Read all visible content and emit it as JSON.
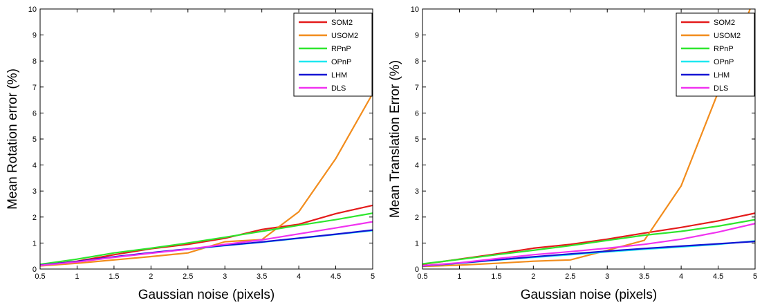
{
  "chart_data": [
    {
      "type": "line",
      "title": "",
      "xlabel": "Gaussian noise (pixels)",
      "ylabel": "Mean Rotation error (%)",
      "xlim": [
        0.5,
        5
      ],
      "ylim": [
        0,
        10
      ],
      "xticks": [
        0.5,
        1,
        1.5,
        2,
        2.5,
        3,
        3.5,
        4,
        4.5,
        5
      ],
      "yticks": [
        0,
        1,
        2,
        3,
        4,
        5,
        6,
        7,
        8,
        9,
        10
      ],
      "grid": false,
      "legend_position": "top-right",
      "x": [
        0.5,
        1,
        1.5,
        2,
        2.5,
        3,
        3.5,
        4,
        4.5,
        5
      ],
      "series": [
        {
          "name": "SOM2",
          "color": "#e41a1a",
          "values": [
            0.15,
            0.3,
            0.55,
            0.78,
            0.95,
            1.18,
            1.52,
            1.72,
            2.13,
            2.45
          ]
        },
        {
          "name": "USOM2",
          "color": "#f28c1c",
          "values": [
            0.12,
            0.22,
            0.35,
            0.48,
            0.62,
            1.05,
            1.13,
            2.2,
            4.25,
            6.75
          ]
        },
        {
          "name": "RPnP",
          "color": "#2ee62e",
          "values": [
            0.18,
            0.38,
            0.62,
            0.8,
            1.0,
            1.22,
            1.45,
            1.68,
            1.9,
            2.15
          ]
        },
        {
          "name": "OPnP",
          "color": "#1ee8f0",
          "values": [
            0.14,
            0.28,
            0.46,
            0.62,
            0.76,
            0.9,
            1.03,
            1.18,
            1.33,
            1.48
          ]
        },
        {
          "name": "LHM",
          "color": "#1414d4",
          "values": [
            0.15,
            0.29,
            0.47,
            0.63,
            0.77,
            0.91,
            1.04,
            1.19,
            1.34,
            1.5
          ]
        },
        {
          "name": "DLS",
          "color": "#f032f0",
          "values": [
            0.14,
            0.27,
            0.45,
            0.61,
            0.76,
            0.95,
            1.12,
            1.35,
            1.58,
            1.82
          ]
        }
      ]
    },
    {
      "type": "line",
      "title": "",
      "xlabel": "Gaussian noise (pixels)",
      "ylabel": "Mean Translation Error (%)",
      "xlim": [
        0.5,
        5
      ],
      "ylim": [
        0,
        10
      ],
      "xticks": [
        0.5,
        1,
        1.5,
        2,
        2.5,
        3,
        3.5,
        4,
        4.5,
        5
      ],
      "yticks": [
        0,
        1,
        2,
        3,
        4,
        5,
        6,
        7,
        8,
        9,
        10
      ],
      "grid": false,
      "legend_position": "top-right",
      "x": [
        0.5,
        1,
        1.5,
        2,
        2.5,
        3,
        3.5,
        4,
        4.5,
        5
      ],
      "series": [
        {
          "name": "SOM2",
          "color": "#e41a1a",
          "values": [
            0.18,
            0.38,
            0.58,
            0.8,
            0.95,
            1.15,
            1.38,
            1.6,
            1.85,
            2.15
          ]
        },
        {
          "name": "USOM2",
          "color": "#f28c1c",
          "values": [
            0.1,
            0.15,
            0.22,
            0.3,
            0.35,
            0.72,
            1.1,
            3.2,
            6.8,
            10.5
          ]
        },
        {
          "name": "RPnP",
          "color": "#2ee62e",
          "values": [
            0.2,
            0.37,
            0.55,
            0.72,
            0.9,
            1.1,
            1.3,
            1.45,
            1.65,
            1.9
          ]
        },
        {
          "name": "OPnP",
          "color": "#1ee8f0",
          "values": [
            0.12,
            0.22,
            0.34,
            0.45,
            0.55,
            0.66,
            0.76,
            0.85,
            0.95,
            1.08
          ]
        },
        {
          "name": "LHM",
          "color": "#1414d4",
          "values": [
            0.12,
            0.23,
            0.35,
            0.47,
            0.58,
            0.69,
            0.79,
            0.88,
            0.97,
            1.06
          ]
        },
        {
          "name": "DLS",
          "color": "#f032f0",
          "values": [
            0.13,
            0.24,
            0.4,
            0.55,
            0.67,
            0.8,
            0.95,
            1.15,
            1.42,
            1.75
          ]
        }
      ]
    }
  ]
}
